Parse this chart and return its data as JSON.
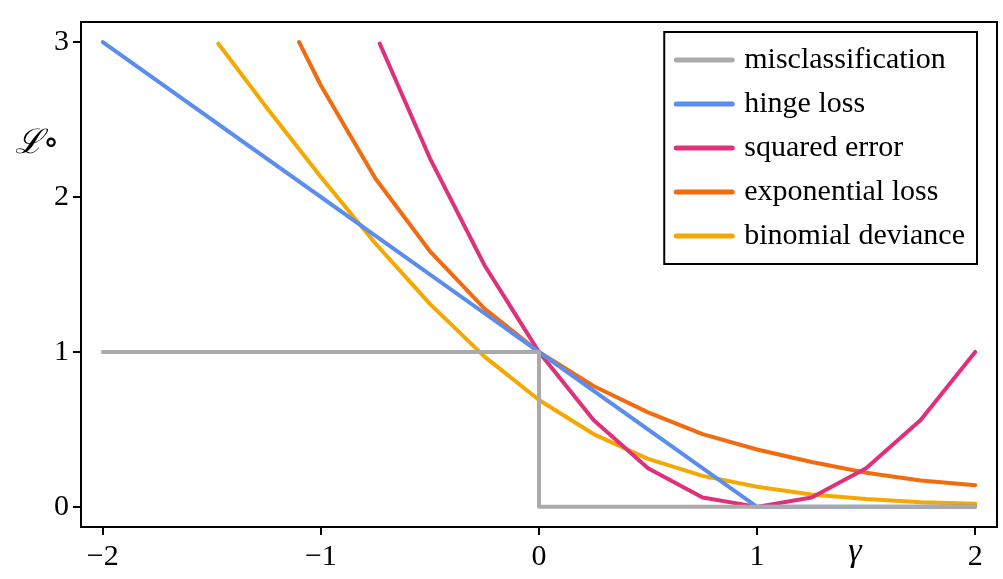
{
  "chart_data": {
    "type": "line",
    "xlabel": "γ",
    "ylabel": "ℒ∘",
    "xlim": [
      -2.1,
      2.1
    ],
    "ylim": [
      -0.13,
      3.13
    ],
    "xticks": [
      {
        "value": -2,
        "label": "−2"
      },
      {
        "value": -1,
        "label": "−1"
      },
      0,
      1,
      2
    ],
    "yticks": [
      0,
      1,
      2,
      3
    ],
    "grid": false,
    "legend": "top right",
    "marker": "none",
    "line_style": "solid",
    "series": [
      {
        "name": "misclassification",
        "color": "#aaaaaa",
        "x": [
          -2,
          0,
          0,
          2
        ],
        "values": [
          1,
          1,
          0,
          0
        ]
      },
      {
        "name": "hinge loss",
        "color": "#5b8def",
        "x": [
          -2,
          1,
          2
        ],
        "values": [
          3,
          0,
          0
        ]
      },
      {
        "name": "squared error",
        "color": "#e0307a",
        "x": [
          -0.73,
          -0.5,
          -0.25,
          0,
          0.25,
          0.5,
          0.75,
          1,
          1.25,
          1.5,
          1.75,
          2
        ],
        "values": [
          2.99,
          2.25,
          1.56,
          1,
          0.56,
          0.25,
          0.06,
          0,
          0.06,
          0.25,
          0.56,
          1
        ]
      },
      {
        "name": "exponential loss",
        "color": "#f26b0f",
        "x": [
          -1.1,
          -1,
          -0.75,
          -0.5,
          -0.25,
          0,
          0.25,
          0.5,
          0.75,
          1,
          1.25,
          1.5,
          1.75,
          2
        ],
        "values": [
          3,
          2.72,
          2.12,
          1.65,
          1.28,
          1,
          0.78,
          0.61,
          0.47,
          0.37,
          0.29,
          0.22,
          0.17,
          0.14
        ]
      },
      {
        "name": "binomial deviance",
        "color": "#f5a800",
        "x": [
          -1.47,
          -1.25,
          -1,
          -0.75,
          -0.5,
          -0.25,
          0,
          0.25,
          0.5,
          0.75,
          1,
          1.25,
          1.5,
          1.75,
          2
        ],
        "values": [
          2.99,
          2.58,
          2.13,
          1.7,
          1.31,
          0.97,
          0.69,
          0.47,
          0.31,
          0.2,
          0.13,
          0.08,
          0.05,
          0.03,
          0.02
        ]
      }
    ]
  }
}
